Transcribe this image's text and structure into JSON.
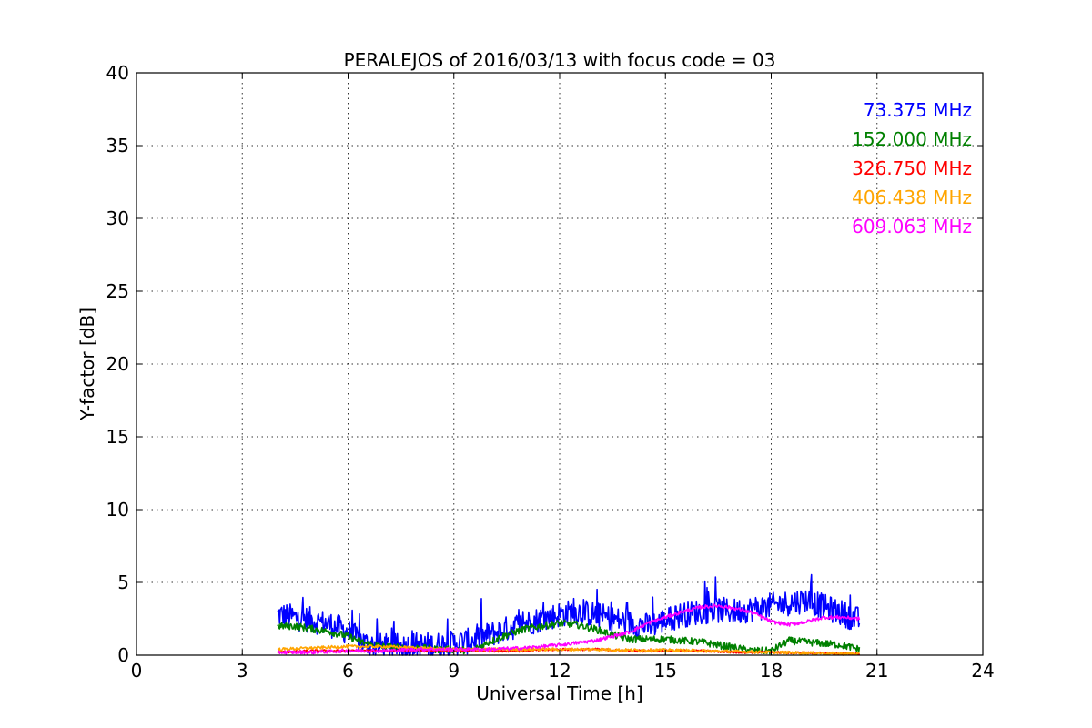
{
  "chart_data": {
    "type": "line",
    "title": "PERALEJOS of 2016/03/13 with focus code = 03",
    "xlabel": "Universal Time [h]",
    "ylabel": "Y-factor [dB]",
    "xlim": [
      0,
      24
    ],
    "ylim": [
      0,
      40
    ],
    "xticks": [
      0,
      3,
      6,
      9,
      12,
      15,
      18,
      21,
      24
    ],
    "yticks": [
      0,
      5,
      10,
      15,
      20,
      25,
      30,
      35,
      40
    ],
    "grid": true,
    "legend_position": "top-right",
    "series": [
      {
        "name": "73.375 MHz",
        "color": "#0000ff",
        "noise": 0.9,
        "x": [
          4.0,
          4.5,
          5.0,
          5.5,
          6.0,
          6.5,
          7.0,
          7.5,
          8.0,
          8.5,
          9.0,
          9.5,
          10.0,
          10.5,
          11.0,
          11.5,
          12.0,
          12.5,
          13.0,
          13.5,
          14.0,
          14.5,
          15.0,
          15.5,
          16.0,
          16.5,
          17.0,
          17.5,
          18.0,
          18.5,
          19.0,
          19.5,
          20.0,
          20.5
        ],
        "y": [
          2.8,
          2.6,
          2.4,
          2.1,
          1.6,
          0.8,
          0.6,
          0.6,
          0.7,
          0.7,
          0.8,
          1.0,
          1.4,
          1.8,
          2.2,
          2.5,
          2.8,
          3.0,
          2.8,
          2.5,
          2.2,
          2.0,
          2.4,
          2.8,
          3.0,
          3.1,
          3.0,
          3.2,
          3.4,
          3.6,
          3.8,
          3.3,
          2.9,
          2.4
        ]
      },
      {
        "name": "152.000 MHz",
        "color": "#008000",
        "noise": 0.25,
        "x": [
          4.0,
          4.5,
          5.0,
          5.5,
          6.0,
          6.5,
          7.0,
          7.5,
          8.0,
          8.5,
          9.0,
          9.5,
          10.0,
          10.5,
          11.0,
          11.5,
          12.0,
          12.5,
          13.0,
          13.5,
          14.0,
          14.5,
          15.0,
          15.5,
          16.0,
          16.5,
          17.0,
          17.5,
          18.0,
          18.5,
          19.0,
          19.5,
          20.0,
          20.5
        ],
        "y": [
          2.0,
          2.0,
          1.8,
          1.6,
          1.3,
          0.8,
          0.6,
          0.5,
          0.5,
          0.4,
          0.4,
          0.3,
          0.9,
          1.4,
          1.8,
          2.0,
          2.2,
          2.1,
          1.8,
          1.4,
          1.1,
          1.1,
          1.1,
          1.0,
          0.9,
          0.7,
          0.5,
          0.3,
          0.3,
          1.0,
          0.9,
          0.8,
          0.7,
          0.4
        ]
      },
      {
        "name": "326.750 MHz",
        "color": "#ff0000",
        "noise": 0.08,
        "x": [
          4.0,
          5.0,
          6.0,
          7.0,
          8.0,
          9.0,
          10.0,
          11.0,
          12.0,
          13.0,
          14.0,
          15.0,
          16.0,
          17.0,
          18.0,
          19.0,
          20.0,
          20.5
        ],
        "y": [
          0.2,
          0.3,
          0.3,
          0.3,
          0.3,
          0.3,
          0.3,
          0.3,
          0.4,
          0.4,
          0.3,
          0.3,
          0.3,
          0.2,
          0.2,
          0.15,
          0.1,
          0.1
        ]
      },
      {
        "name": "406.438 MHz",
        "color": "#ffa500",
        "noise": 0.1,
        "x": [
          4.0,
          5.0,
          6.0,
          7.0,
          8.0,
          9.0,
          10.0,
          11.0,
          12.0,
          13.0,
          14.0,
          15.0,
          16.0,
          17.0,
          18.0,
          19.0,
          20.0,
          20.5
        ],
        "y": [
          0.4,
          0.5,
          0.6,
          0.6,
          0.5,
          0.4,
          0.4,
          0.4,
          0.4,
          0.4,
          0.35,
          0.35,
          0.3,
          0.25,
          0.2,
          0.15,
          0.1,
          0.1
        ]
      },
      {
        "name": "609.063 MHz",
        "color": "#ff00ff",
        "noise": 0.12,
        "x": [
          4.0,
          5.0,
          6.0,
          7.0,
          8.0,
          9.0,
          10.0,
          11.0,
          12.0,
          13.0,
          14.0,
          14.5,
          15.0,
          15.5,
          16.0,
          16.5,
          17.0,
          17.5,
          18.0,
          18.5,
          19.0,
          19.5,
          20.0,
          20.5
        ],
        "y": [
          0.2,
          0.2,
          0.3,
          0.3,
          0.4,
          0.4,
          0.4,
          0.5,
          0.7,
          1.0,
          1.6,
          2.2,
          2.6,
          3.0,
          3.3,
          3.4,
          3.2,
          2.9,
          2.3,
          2.1,
          2.3,
          2.6,
          2.6,
          2.5
        ]
      }
    ]
  }
}
